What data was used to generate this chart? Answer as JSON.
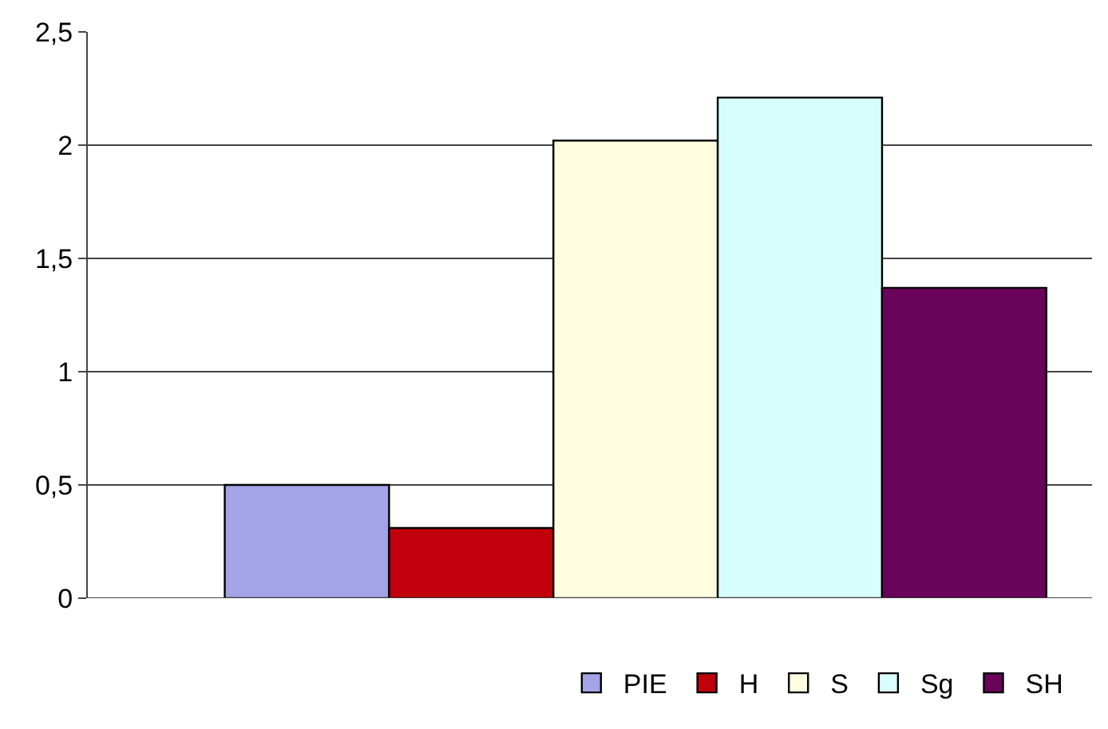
{
  "chart_data": {
    "type": "bar",
    "categories": [
      null
    ],
    "series": [
      {
        "name": "PIE",
        "color": "#a3a3e6",
        "values": [
          0.5
        ]
      },
      {
        "name": "H",
        "color": "#c0000b",
        "values": [
          0.31
        ]
      },
      {
        "name": "S",
        "color": "#fefde0",
        "values": [
          2.02
        ]
      },
      {
        "name": "Sg",
        "color": "#d8fdfd",
        "values": [
          2.21
        ]
      },
      {
        "name": "SH",
        "color": "#6a035a",
        "values": [
          1.37
        ]
      }
    ],
    "ylim": [
      0,
      2.5
    ],
    "yticks": [
      {
        "value": 0,
        "label": "0"
      },
      {
        "value": 0.5,
        "label": "0,5"
      },
      {
        "value": 1,
        "label": "1"
      },
      {
        "value": 1.5,
        "label": "1,5"
      },
      {
        "value": 2,
        "label": "2"
      },
      {
        "value": 2.5,
        "label": "2,5"
      }
    ],
    "grid": "y",
    "legend": "bottom"
  }
}
